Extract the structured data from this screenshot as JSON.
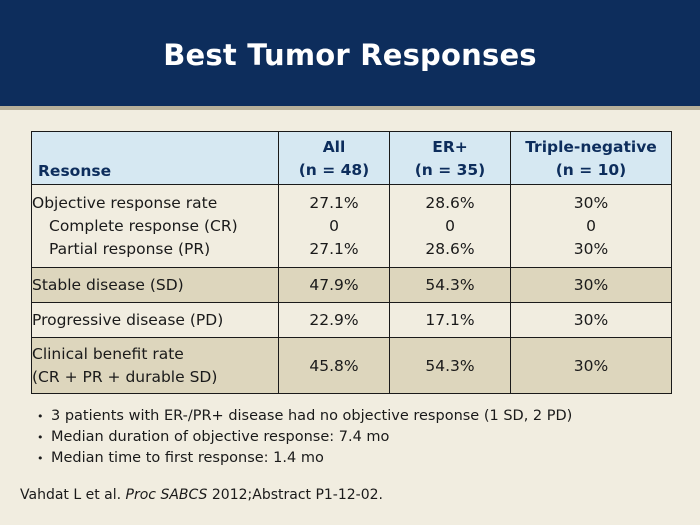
{
  "slide": {
    "title": "Best Tumor Responses"
  },
  "table": {
    "header": {
      "label": "Resonse",
      "col_all_line1": "All",
      "col_all_line2": "(n = 48)",
      "col_er_line1": "ER+",
      "col_er_line2": "(n = 35)",
      "col_tn_line1": "Triple-negative",
      "col_tn_line2": "(n = 10)"
    },
    "rows": {
      "orr": {
        "label": "Objective response rate",
        "all": "27.1%",
        "er": "28.6%",
        "tn": "30%"
      },
      "cr": {
        "label": "Complete response (CR)",
        "all": "0",
        "er": "0",
        "tn": "0"
      },
      "pr": {
        "label": "Partial response (PR)",
        "all": "27.1%",
        "er": "28.6%",
        "tn": "30%"
      },
      "sd": {
        "label": "Stable disease (SD)",
        "all": "47.9%",
        "er": "54.3%",
        "tn": "30%"
      },
      "pd": {
        "label": "Progressive disease (PD)",
        "all": "22.9%",
        "er": "17.1%",
        "tn": "30%"
      },
      "cbr": {
        "label_line1": "Clinical benefit rate",
        "label_line2": "(CR + PR + durable SD)",
        "all": "45.8%",
        "er": "54.3%",
        "tn": "30%"
      }
    }
  },
  "notes": [
    "3 patients with ER-/PR+ disease had no objective response (1 SD, 2 PD)",
    "Median duration of objective response: 7.4 mo",
    "Median time to first response: 1.4 mo"
  ],
  "citation": {
    "authors": "Vahdat L et al.",
    "journal": "Proc SABCS",
    "rest": "2012;Abstract P1-12-02."
  },
  "colors": {
    "title_bar": "#0d2d5c",
    "background": "#f1ede0",
    "header_fill": "#d6e8f2",
    "shaded_row": "#ddd6bd"
  }
}
